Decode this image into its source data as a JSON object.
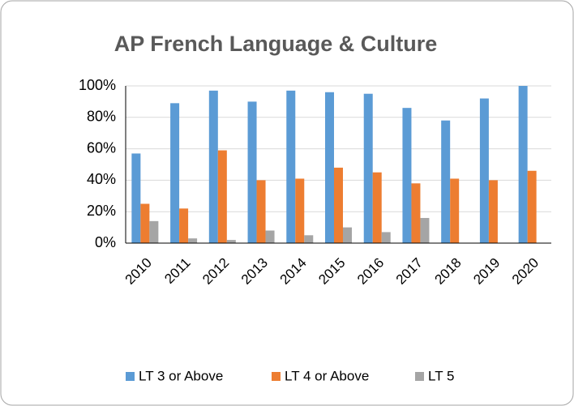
{
  "chart_data": {
    "type": "bar",
    "title": "AP French Language & Culture",
    "categories": [
      "2010",
      "2011",
      "2012",
      "2013",
      "2014",
      "2015",
      "2016",
      "2017",
      "2018",
      "2019",
      "2020"
    ],
    "series": [
      {
        "name": "LT 3 or Above",
        "color": "#5b9bd5",
        "values": [
          57,
          89,
          97,
          90,
          97,
          96,
          95,
          86,
          78,
          92,
          100
        ]
      },
      {
        "name": "LT 4 or Above",
        "color": "#ed7d31",
        "values": [
          25,
          22,
          59,
          40,
          41,
          48,
          45,
          38,
          41,
          40,
          46
        ]
      },
      {
        "name": "LT 5",
        "color": "#a5a5a5",
        "values": [
          14,
          3,
          2,
          8,
          5,
          10,
          7,
          16,
          null,
          null,
          null
        ]
      }
    ],
    "ylim": [
      0,
      100
    ],
    "yticks": [
      {
        "value": 0,
        "label": "0%"
      },
      {
        "value": 20,
        "label": "20%"
      },
      {
        "value": 40,
        "label": "40%"
      },
      {
        "value": 60,
        "label": "60%"
      },
      {
        "value": 80,
        "label": "80%"
      },
      {
        "value": 100,
        "label": "100%"
      }
    ],
    "grid": true,
    "legend": "bottom"
  }
}
